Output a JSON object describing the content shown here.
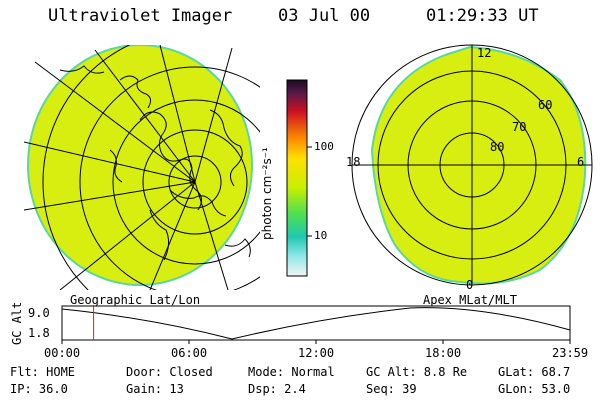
{
  "header": {
    "title": "Ultraviolet Imager",
    "date": "03 Jul 00",
    "time": "01:29:33 UT"
  },
  "colorbar": {
    "unit_label": "photon cm⁻²s⁻¹",
    "ticks": [
      "100",
      "10"
    ]
  },
  "panels": {
    "left_label": "Geographic Lat/Lon",
    "right_label": "Apex MLat/MLT",
    "right_ring_labels": [
      "60",
      "70",
      "80"
    ],
    "right_mlt_labels": [
      "12",
      "18",
      "6",
      "0"
    ]
  },
  "timeline": {
    "ylabel": "GC Alt",
    "ytick_top": "9.0",
    "ytick_bottom": "1.8",
    "xticks": [
      "00:00",
      "06:00",
      "12:00",
      "18:00",
      "23:59"
    ],
    "marker_time": "01:29:33",
    "marker_fraction": 0.0622
  },
  "footer": {
    "flt": "Flt: HOME",
    "ip": "IP: 36.0",
    "door": "Door: Closed",
    "gain": "Gain: 13",
    "mode": "Mode: Normal",
    "dsp": "Dsp:     2.4",
    "gcalt": "GC Alt: 8.8 Re",
    "seq": "Seq: 39",
    "glat": "GLat:  68.7",
    "glon": "GLon:  53.0"
  },
  "colors": {
    "image_fill": "#d8ee10",
    "edge": "#58d8a0",
    "marker": "#e02020"
  }
}
